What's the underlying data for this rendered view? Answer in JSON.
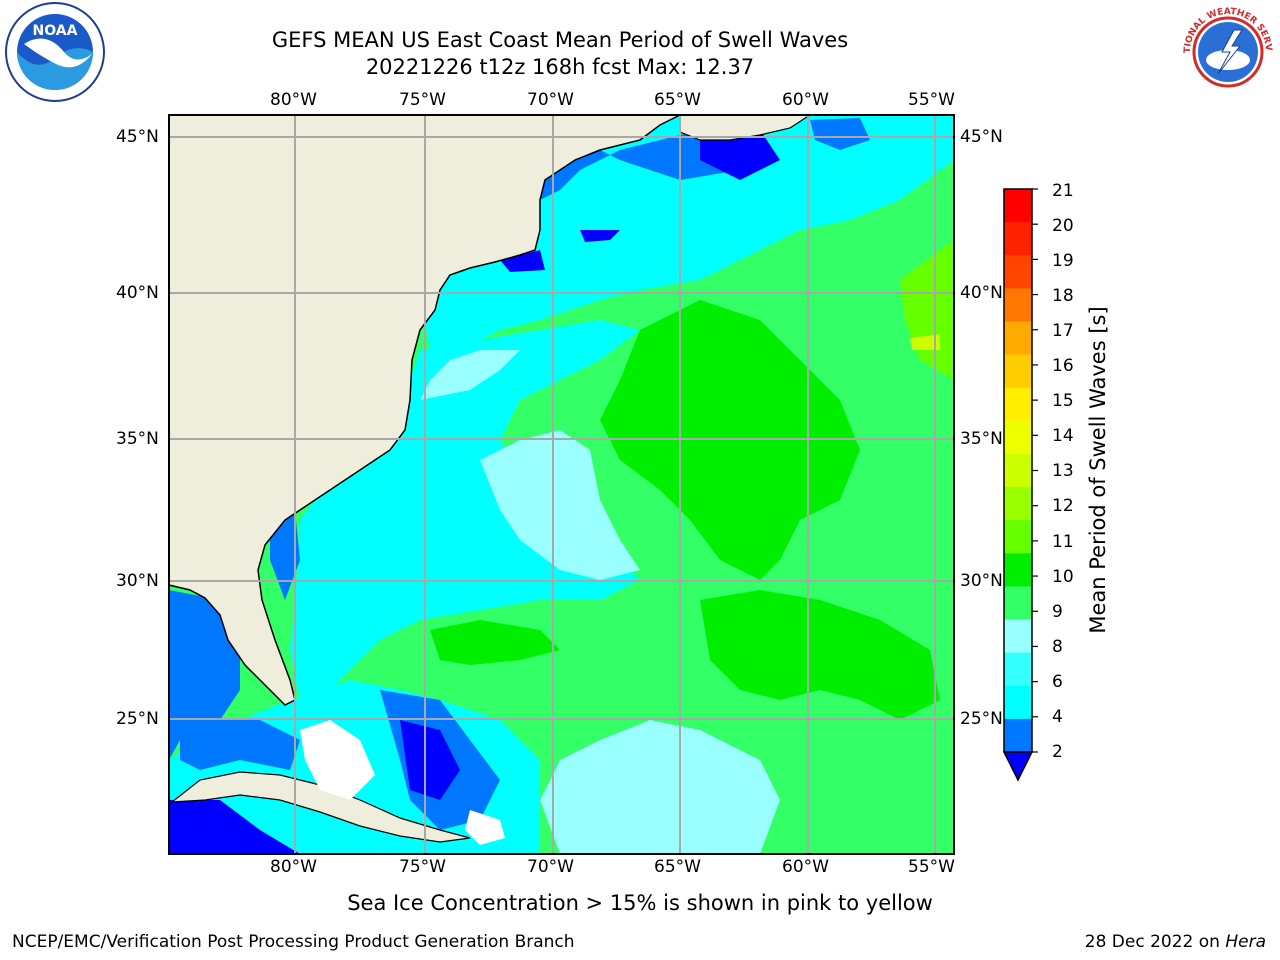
{
  "header": {
    "title_line1": "GEFS MEAN US East Coast Mean Period of Swell Waves",
    "title_line2": "20221226 t12z 168h fcst   Max: 12.37"
  },
  "logos": {
    "left": {
      "icon": "noaa-logo",
      "text": "NOAA"
    },
    "right": {
      "icon": "nws-logo",
      "text": "NATIONAL WEATHER SERVICE"
    }
  },
  "map": {
    "lon_labels": [
      "80°W",
      "75°W",
      "70°W",
      "65°W",
      "60°W",
      "55°W"
    ],
    "lat_labels": [
      "45°N",
      "40°N",
      "35°N",
      "30°N",
      "25°N"
    ],
    "land_color": "#efeddc",
    "ocean_levels": {
      "2-4": "#0000ff",
      "4-6": "#0077ff",
      "6-8": "#00ffff",
      "8-9": "#99ffff",
      "9-10": "#33ff66",
      "10-11": "#00ee00"
    }
  },
  "colorbar": {
    "title": "Mean Period of Swell Waves [s]",
    "ticks": [
      "21",
      "20",
      "19",
      "18",
      "17",
      "16",
      "15",
      "14",
      "13",
      "12",
      "11",
      "10",
      "9",
      "8",
      "6",
      "4",
      "2"
    ],
    "colors": [
      "#ff0000",
      "#ff2200",
      "#ff4400",
      "#ff7700",
      "#ffaa00",
      "#ffcc00",
      "#ffee00",
      "#eeff00",
      "#ccff00",
      "#99ff00",
      "#66ff00",
      "#00ee00",
      "#33ff66",
      "#99ffff",
      "#33ffff",
      "#00ffff",
      "#0077ff",
      "#0000ff"
    ]
  },
  "notes": {
    "sea_ice": "Sea Ice Concentration > 15% is shown in pink to yellow"
  },
  "footer": {
    "left": "NCEP/EMC/Verification Post Processing Product Generation Branch",
    "right_date": "28 Dec 2022 on ",
    "right_host": "Hera"
  }
}
